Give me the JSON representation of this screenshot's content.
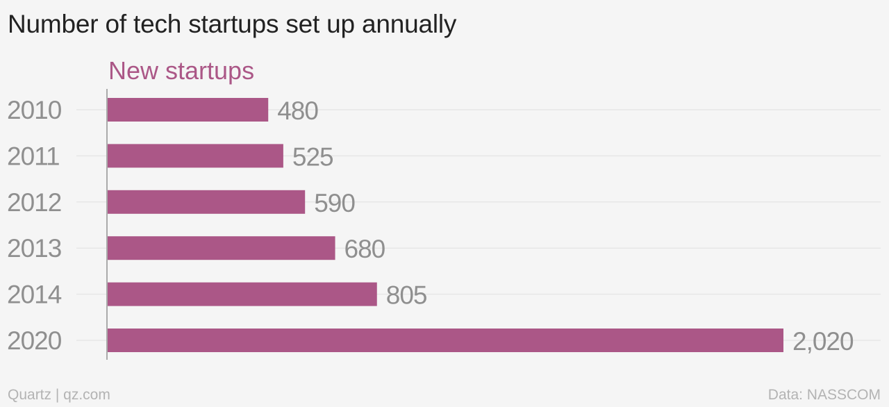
{
  "chart_data": {
    "type": "bar",
    "orientation": "horizontal",
    "title": "Number of tech startups set up annually",
    "categories": [
      "2010",
      "2011",
      "2012",
      "2013",
      "2014",
      "2020"
    ],
    "series": [
      {
        "name": "New startups",
        "values": [
          480,
          525,
          590,
          680,
          805,
          2020
        ],
        "labels": [
          "480",
          "525",
          "590",
          "680",
          "805",
          "2,020"
        ],
        "color": "#ab5787"
      }
    ],
    "xlim": [
      0,
      2020
    ],
    "grid": true
  },
  "footer": {
    "source_left": "Quartz | qz.com",
    "source_right": "Data: NASSCOM"
  },
  "colors": {
    "title": "#222222",
    "category_label": "#8f8f8f",
    "value_label": "#8f8f8f",
    "grid": "#e6e6e6",
    "axis": "#aaaaaa",
    "footer": "#b3b3b3"
  }
}
